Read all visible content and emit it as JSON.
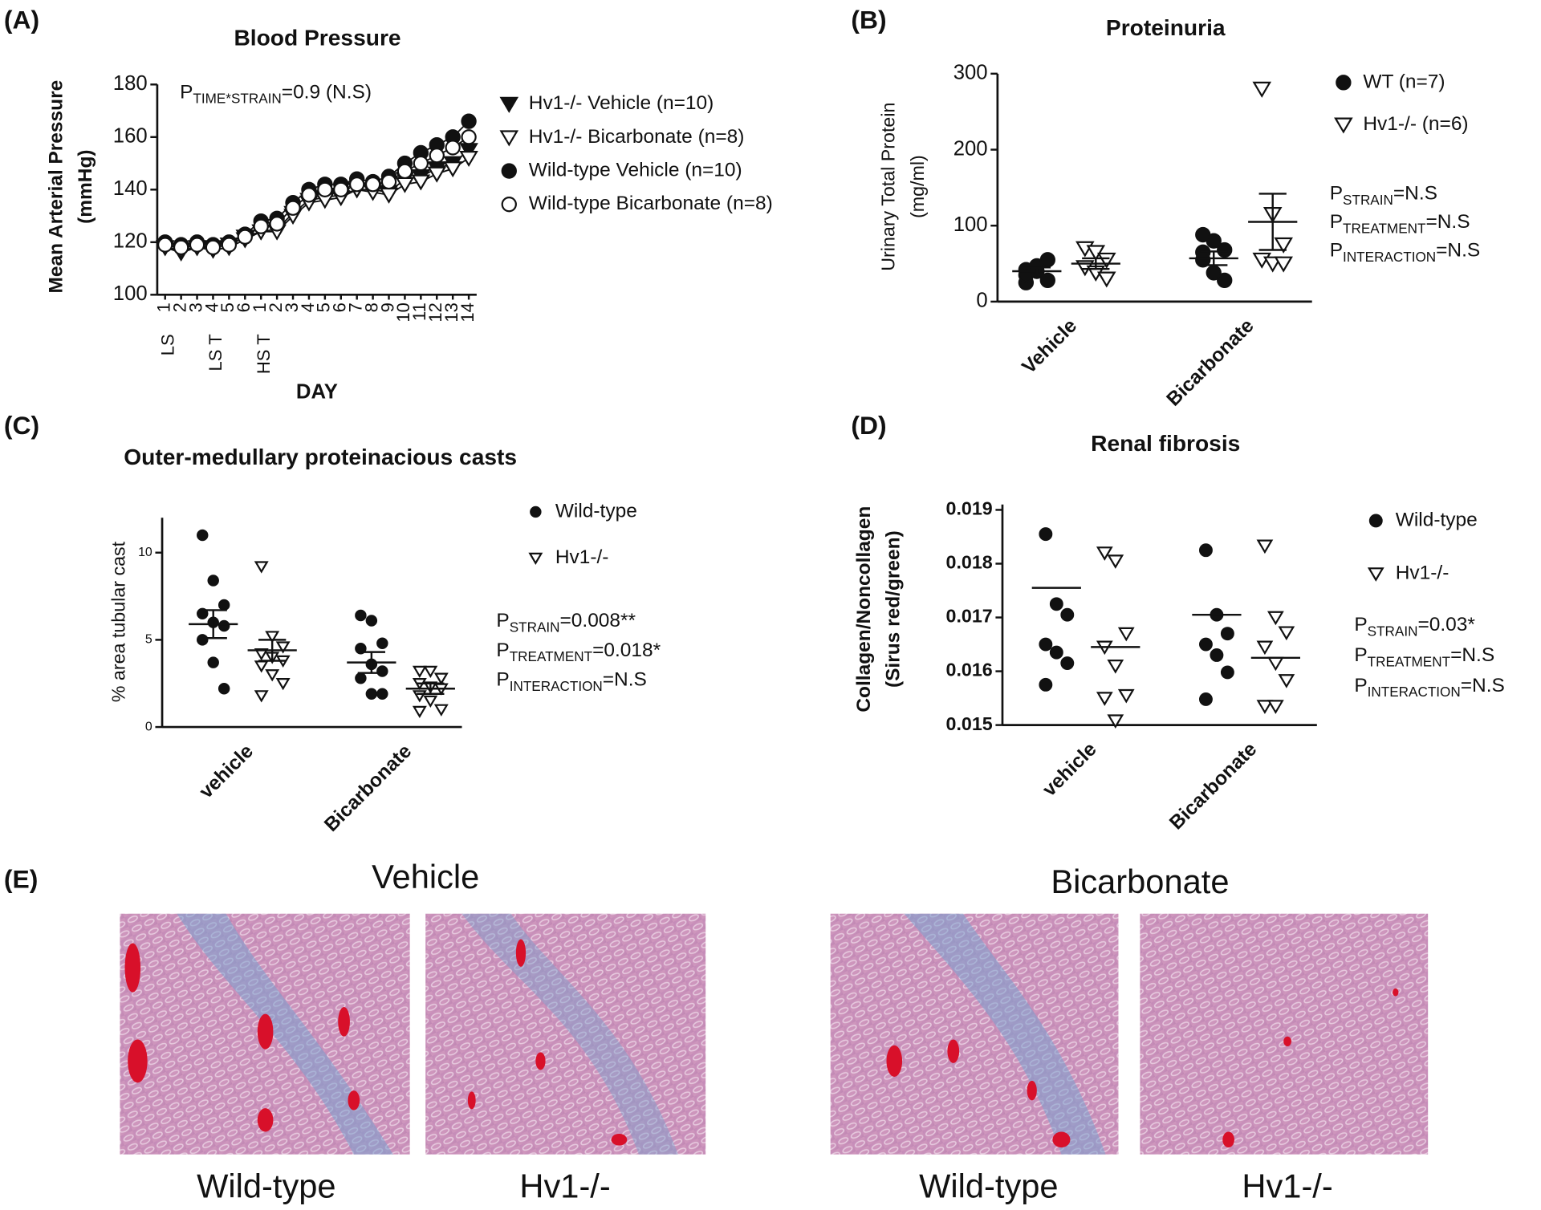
{
  "chart_data": [
    {
      "type": "line",
      "panel": "(A)",
      "title": "Blood Pressure",
      "ylabel": [
        "Mean Arterial Pressure",
        "(mmHg)"
      ],
      "xlabel": "DAY",
      "categories": [
        "1",
        "2",
        "3",
        "4",
        "5",
        "6",
        "1",
        "2",
        "3",
        "4",
        "5",
        "6",
        "7",
        "8",
        "9",
        "10",
        "11",
        "12",
        "13",
        "14"
      ],
      "x_group_labels": [
        "LS",
        "LS T",
        "HS T"
      ],
      "ylim": [
        100,
        180
      ],
      "yticks": [
        100,
        120,
        140,
        160,
        180
      ],
      "stats": [
        {
          "p": "P",
          "sub": "TIME*STRAIN",
          "text": "=0.9 (N.S)"
        }
      ],
      "series": [
        {
          "name": "Hv1-/- Vehicle (n=10)",
          "marker": "triangle-filled",
          "color": "#111111",
          "values": [
            118,
            116,
            118,
            117,
            118,
            121,
            124,
            125,
            131,
            136,
            137,
            138,
            140,
            140,
            139,
            144,
            145,
            148,
            150,
            155
          ]
        },
        {
          "name": "Hv1-/- Bicarbonate (n=8)",
          "marker": "triangle-open",
          "color": "#111111",
          "values": [
            118,
            117,
            118,
            118,
            119,
            122,
            124,
            124,
            130,
            135,
            136,
            137,
            140,
            139,
            138,
            142,
            143,
            146,
            148,
            152
          ]
        },
        {
          "name": "Wild-type Vehicle (n=10)",
          "marker": "circle-filled",
          "color": "#111111",
          "values": [
            120,
            119,
            120,
            119,
            120,
            123,
            128,
            129,
            135,
            140,
            142,
            142,
            144,
            143,
            145,
            150,
            154,
            157,
            160,
            166
          ]
        },
        {
          "name": "Wild-type Bicarbonate (n=8)",
          "marker": "circle-open",
          "color": "#111111",
          "values": [
            119,
            118,
            119,
            118,
            119,
            122,
            126,
            127,
            133,
            138,
            140,
            140,
            142,
            142,
            143,
            147,
            150,
            153,
            156,
            160
          ]
        }
      ]
    },
    {
      "type": "strip",
      "panel": "(B)",
      "title": "Proteinuria",
      "ylabel": [
        "Urinary Total Protein",
        "(mg/ml)"
      ],
      "categories": [
        "Vehicle",
        "Bicarbonate"
      ],
      "ylim": [
        0,
        300
      ],
      "yticks": [
        0,
        100,
        200,
        300
      ],
      "stats": [
        {
          "p": "P",
          "sub": "STRAIN",
          "text": "=N.S"
        },
        {
          "p": "P",
          "sub": "TREATMENT",
          "text": "=N.S"
        },
        {
          "p": "P",
          "sub": "INTERACTION",
          "text": "=N.S"
        }
      ],
      "series": [
        {
          "name": "WT (n=7)",
          "marker": "circle-filled",
          "color": "#111111",
          "values": [
            [
              42,
              40,
              28,
              25,
              47,
              55,
              35
            ],
            [
              88,
              80,
              68,
              55,
              38,
              28,
              65
            ]
          ],
          "means": [
            40,
            57
          ],
          "sems": [
            5,
            9
          ]
        },
        {
          "name": "Hv1-/- (n=6)",
          "marker": "triangle-open",
          "color": "#111111",
          "values": [
            [
              70,
              65,
              55,
              45,
              38,
              30
            ],
            [
              280,
              115,
              75,
              55,
              50,
              50
            ]
          ],
          "means": [
            50,
            105
          ],
          "sems": [
            7,
            37
          ]
        }
      ]
    },
    {
      "type": "strip",
      "panel": "(C)",
      "title": "Outer-medullary proteinacious casts",
      "ylabel": [
        "% area tubular cast"
      ],
      "categories": [
        "vehicle",
        "Bicarbonate"
      ],
      "ylim": [
        0,
        12
      ],
      "yticks": [
        0,
        5,
        10
      ],
      "stats": [
        {
          "p": "P",
          "sub": "STRAIN",
          "text": "=0.008**"
        },
        {
          "p": "P",
          "sub": "TREATMENT",
          "text": "=0.018*"
        },
        {
          "p": "P",
          "sub": "INTERACTION",
          "text": "=N.S"
        }
      ],
      "series": [
        {
          "name": "Wild-type",
          "marker": "circle-filled",
          "color": "#111111",
          "values": [
            [
              11,
              8.4,
              7,
              6.5,
              6,
              5.8,
              5,
              3.7,
              2.2
            ],
            [
              6.4,
              6.1,
              4.8,
              4.5,
              3.6,
              3.2,
              2.8,
              1.9,
              1.9
            ]
          ],
          "means": [
            5.9,
            3.7
          ],
          "sems": [
            0.8,
            0.6
          ]
        },
        {
          "name": "Hv1-/-",
          "marker": "triangle-open",
          "color": "#111111",
          "values": [
            [
              9.2,
              5.2,
              4.6,
              4.2,
              4,
              3.8,
              3.5,
              3,
              2.5,
              1.8
            ],
            [
              3.2,
              3.2,
              2.8,
              2.5,
              2.3,
              2.2,
              1.8,
              1.5,
              1,
              0.9
            ]
          ],
          "means": [
            4.4,
            2.2
          ],
          "sems": [
            0.6,
            0.3
          ]
        }
      ]
    },
    {
      "type": "strip",
      "panel": "(D)",
      "title": "Renal fibrosis",
      "ylabel": [
        "Collagen/Noncollagen",
        "(Sirus red/green)"
      ],
      "categories": [
        "vehicle",
        "Bicarbonate"
      ],
      "ylim": [
        0.015,
        0.0191
      ],
      "yticks": [
        0.015,
        0.016,
        0.017,
        0.018,
        0.019
      ],
      "stats": [
        {
          "p": "P",
          "sub": "STRAIN",
          "text": "=0.03*"
        },
        {
          "p": "P",
          "sub": "TREATMENT",
          "text": "=N.S"
        },
        {
          "p": "P",
          "sub": "INTERACTION",
          "text": "=N.S"
        }
      ],
      "series": [
        {
          "name": "Wild-type",
          "marker": "circle-filled",
          "color": "#111111",
          "values": [
            [
              0.01855,
              0.01725,
              0.01705,
              0.0165,
              0.01635,
              0.01615,
              0.01575
            ],
            [
              0.01825,
              0.01705,
              0.0167,
              0.0165,
              0.0163,
              0.01598,
              0.01548
            ]
          ],
          "means": [
            0.01755,
            0.01705
          ]
        },
        {
          "name": "Hv1-/-",
          "marker": "triangle-open",
          "color": "#111111",
          "values": [
            [
              0.0182,
              0.01805,
              0.0167,
              0.01645,
              0.0161,
              0.01555,
              0.0155,
              0.01508
            ],
            [
              0.01833,
              0.017,
              0.01672,
              0.01645,
              0.01615,
              0.01583,
              0.01535,
              0.01535
            ]
          ],
          "means": [
            0.01645,
            0.01625
          ]
        }
      ]
    }
  ],
  "figure_e": {
    "panel": "(E)",
    "groups": [
      {
        "title": "Vehicle",
        "captions": [
          "Wild-type",
          "Hv1-/-"
        ]
      },
      {
        "title": "Bicarbonate",
        "captions": [
          "Wild-type",
          "Hv1-/-"
        ]
      }
    ]
  }
}
